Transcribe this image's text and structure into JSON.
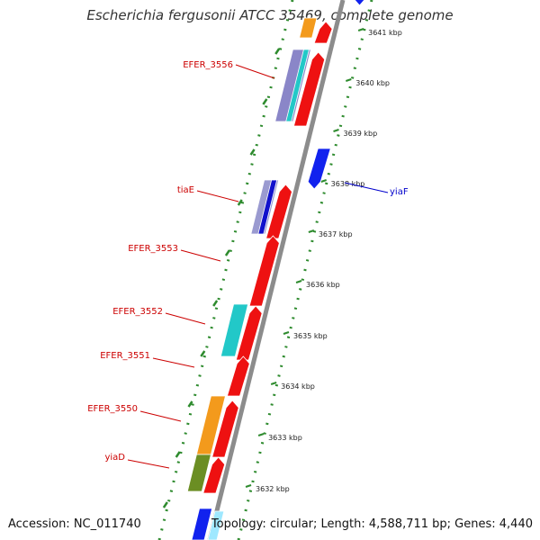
{
  "title": "Escherichia fergusonii ATCC 35469, complete genome",
  "footer": {
    "accession": "Accession: NC_011740",
    "topology": "Topology: circular; Length: 4,588,711 bp; Genes: 4,440"
  },
  "colors": {
    "backbone": "#8c8c8c",
    "forward_gene": "#ee1111",
    "reverse_gene": "#1122ee",
    "tick": "#2e8b2e",
    "label_red": "#cc0000",
    "label_blue": "#0000cc",
    "orange": "#f39a1c",
    "teal": "#22c8c8",
    "olive": "#6b8e23"
  },
  "scale_labels": [
    "3641 kbp",
    "3640 kbp",
    "3639 kbp",
    "3638 kbp",
    "3637 kbp",
    "3636 kbp",
    "3635 kbp",
    "3634 kbp",
    "3633 kbp",
    "3632 kbp"
  ],
  "gene_labels": [
    {
      "text": "EFER_3556",
      "color": "red"
    },
    {
      "text": "tiaE",
      "color": "red"
    },
    {
      "text": "yiaF",
      "color": "blue"
    },
    {
      "text": "EFER_3553",
      "color": "red"
    },
    {
      "text": "EFER_3552",
      "color": "red"
    },
    {
      "text": "EFER_3551",
      "color": "red"
    },
    {
      "text": "EFER_3550",
      "color": "red"
    },
    {
      "text": "yiaD",
      "color": "red"
    }
  ]
}
